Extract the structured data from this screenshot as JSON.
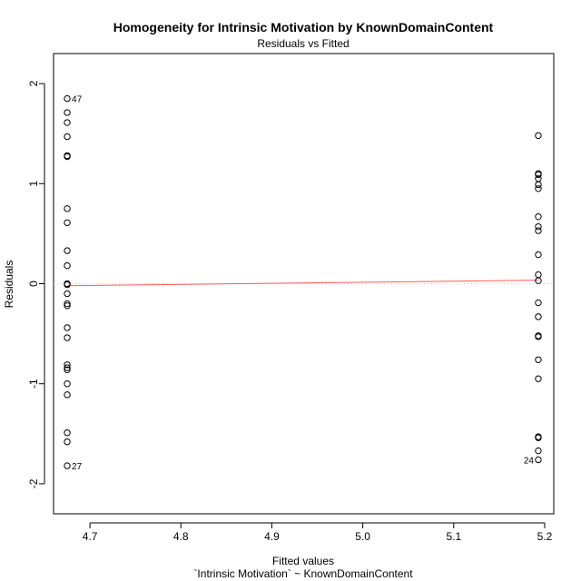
{
  "chart_data": {
    "type": "scatter",
    "title": "Homogeneity for Intrinsic Motivation by KnownDomainContent",
    "subtitle": "Residuals vs Fitted",
    "xlabel": "Fitted values",
    "xlabel2": "`Intrinsic Motivation` ~ KnownDomainContent",
    "ylabel": "Residuals",
    "xlim": [
      4.66,
      5.21
    ],
    "ylim": [
      -2.3,
      2.3
    ],
    "xticks": [
      4.7,
      4.8,
      4.9,
      5.0,
      5.1,
      5.2
    ],
    "xtick_labels": [
      "4.7",
      "4.8",
      "4.9",
      "5.0",
      "5.1",
      "5.2"
    ],
    "yticks": [
      -2,
      -1,
      0,
      1,
      2
    ],
    "ytick_labels": [
      "-2",
      "-1",
      "0",
      "1",
      "2"
    ],
    "grid": false,
    "reference_line": {
      "y": 0,
      "style": "dotted",
      "color": "#c8c8c8"
    },
    "smooth_line": {
      "x": [
        4.675,
        5.193
      ],
      "y": [
        -0.02,
        0.035
      ],
      "color": "#ff5a5a"
    },
    "series": [
      {
        "x_value": 4.675,
        "y": [
          1.85,
          1.71,
          1.61,
          1.47,
          1.28,
          1.27,
          0.75,
          0.61,
          0.33,
          0.18,
          0.0,
          -0.01,
          -0.1,
          -0.2,
          -0.22,
          -0.44,
          -0.54,
          -0.81,
          -0.86,
          -0.84,
          -1.0,
          -1.11,
          -1.49,
          -1.58,
          -1.82
        ]
      },
      {
        "x_value": 5.193,
        "y": [
          1.48,
          1.1,
          1.09,
          1.05,
          0.99,
          0.95,
          0.67,
          0.57,
          0.53,
          0.29,
          0.09,
          0.03,
          -0.19,
          -0.33,
          -0.52,
          -0.53,
          -0.76,
          -0.95,
          -1.53,
          -1.54,
          -1.67,
          -1.76
        ]
      }
    ],
    "point_labels": [
      {
        "text": "47",
        "x": 4.675,
        "y": 1.85,
        "side": "right"
      },
      {
        "text": "27",
        "x": 4.675,
        "y": -1.82,
        "side": "right"
      },
      {
        "text": "24",
        "x": 5.193,
        "y": -1.76,
        "side": "left"
      }
    ],
    "colors": {
      "points": "#000000",
      "smooth": "#ff5a5a",
      "reference": "#c8c8c8"
    }
  }
}
